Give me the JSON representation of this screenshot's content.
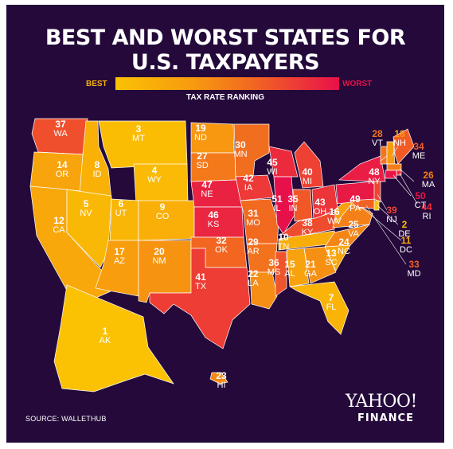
{
  "title_line1": "BEST AND WORST STATES FOR",
  "title_line2": "U.S. TAXPAYERS",
  "legend": {
    "best_label": "BEST",
    "worst_label": "WORST",
    "subtitle": "TAX RATE RANKING",
    "color_best": "#fbc103",
    "color_worst": "#e8104a"
  },
  "source": "SOURCE: WALLETHUB",
  "logo_line1": "YAHOO!",
  "logo_line2": "FINANCE",
  "states": [
    {
      "abbr": "WA",
      "rank": "37"
    },
    {
      "abbr": "OR",
      "rank": "14"
    },
    {
      "abbr": "CA",
      "rank": "12"
    },
    {
      "abbr": "ID",
      "rank": "8"
    },
    {
      "abbr": "NV",
      "rank": "5"
    },
    {
      "abbr": "MT",
      "rank": "3"
    },
    {
      "abbr": "WY",
      "rank": "4"
    },
    {
      "abbr": "UT",
      "rank": "6"
    },
    {
      "abbr": "AZ",
      "rank": "17"
    },
    {
      "abbr": "CO",
      "rank": "9"
    },
    {
      "abbr": "NM",
      "rank": "20"
    },
    {
      "abbr": "ND",
      "rank": "19"
    },
    {
      "abbr": "SD",
      "rank": "27"
    },
    {
      "abbr": "NE",
      "rank": "47"
    },
    {
      "abbr": "KS",
      "rank": "46"
    },
    {
      "abbr": "OK",
      "rank": "32"
    },
    {
      "abbr": "TX",
      "rank": "41"
    },
    {
      "abbr": "MN",
      "rank": "30"
    },
    {
      "abbr": "IA",
      "rank": "42"
    },
    {
      "abbr": "MO",
      "rank": "31"
    },
    {
      "abbr": "AR",
      "rank": "29"
    },
    {
      "abbr": "LA",
      "rank": "22"
    },
    {
      "abbr": "WI",
      "rank": "45"
    },
    {
      "abbr": "IL",
      "rank": "51"
    },
    {
      "abbr": "MI",
      "rank": "40"
    },
    {
      "abbr": "IN",
      "rank": "35"
    },
    {
      "abbr": "OH",
      "rank": "43"
    },
    {
      "abbr": "KY",
      "rank": "38"
    },
    {
      "abbr": "TN",
      "rank": "10"
    },
    {
      "abbr": "MS",
      "rank": "36"
    },
    {
      "abbr": "AL",
      "rank": "15"
    },
    {
      "abbr": "GA",
      "rank": "21"
    },
    {
      "abbr": "FL",
      "rank": "7"
    },
    {
      "abbr": "SC",
      "rank": "13"
    },
    {
      "abbr": "NC",
      "rank": "24"
    },
    {
      "abbr": "VA",
      "rank": "25"
    },
    {
      "abbr": "WV",
      "rank": "16"
    },
    {
      "abbr": "PA",
      "rank": "49"
    },
    {
      "abbr": "NY",
      "rank": "48"
    },
    {
      "abbr": "VT",
      "rank": "28"
    },
    {
      "abbr": "NH",
      "rank": "18"
    },
    {
      "abbr": "ME",
      "rank": "34"
    },
    {
      "abbr": "MA",
      "rank": "26"
    },
    {
      "abbr": "RI",
      "rank": "44"
    },
    {
      "abbr": "CT",
      "rank": "50"
    },
    {
      "abbr": "NJ",
      "rank": "39"
    },
    {
      "abbr": "DE",
      "rank": "2"
    },
    {
      "abbr": "DC",
      "rank": "11"
    },
    {
      "abbr": "MD",
      "rank": "33"
    },
    {
      "abbr": "AK",
      "rank": "1"
    },
    {
      "abbr": "HI",
      "rank": "23"
    }
  ]
}
